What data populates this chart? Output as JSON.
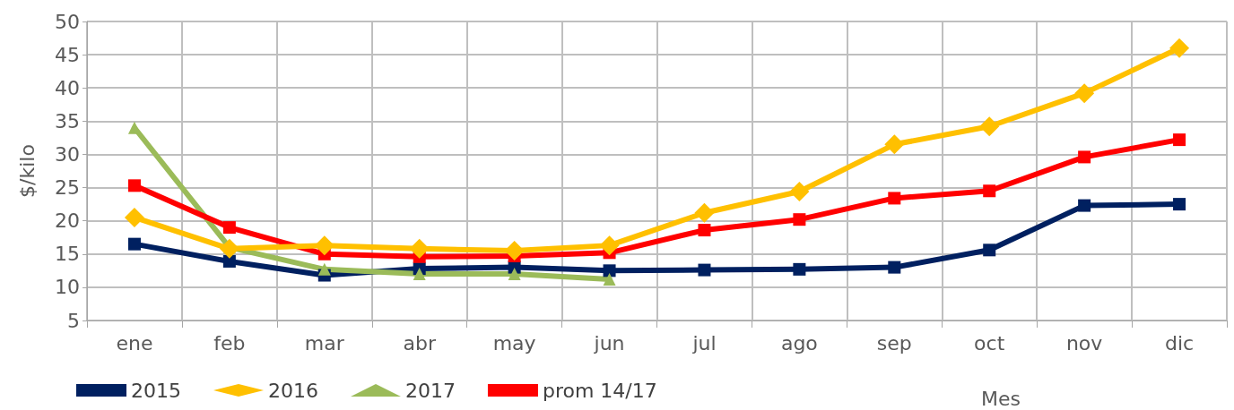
{
  "chart_data": {
    "type": "line",
    "ylabel": "$/kilo",
    "xlabel": "Mes",
    "categories": [
      "ene",
      "feb",
      "mar",
      "abr",
      "may",
      "jun",
      "jul",
      "ago",
      "sep",
      "oct",
      "nov",
      "dic"
    ],
    "series": [
      {
        "name": "2015",
        "color": "#002060",
        "marker": "square",
        "values": [
          16.5,
          13.9,
          11.8,
          12.8,
          13,
          12.5,
          12.6,
          12.7,
          13,
          15.6,
          22.3,
          22.5
        ]
      },
      {
        "name": "2016",
        "color": "#ffc000",
        "marker": "diamond",
        "values": [
          20.5,
          15.8,
          16.3,
          15.8,
          15.5,
          16.3,
          21.2,
          24.4,
          31.5,
          34.2,
          39.2,
          46
        ]
      },
      {
        "name": "2017",
        "color": "#9bbb59",
        "marker": "triangle",
        "values": [
          34,
          16,
          12.7,
          12,
          12,
          11.2,
          null,
          null,
          null,
          null,
          null,
          null
        ]
      },
      {
        "name": "prom 14/17",
        "color": "#ff0000",
        "marker": "square",
        "values": [
          25.3,
          19,
          15,
          14.6,
          14.7,
          15.2,
          18.6,
          20.2,
          23.4,
          24.5,
          29.6,
          32.2
        ]
      }
    ],
    "ylim": [
      5,
      50
    ],
    "yticks": [
      5,
      10,
      15,
      20,
      25,
      30,
      35,
      40,
      45,
      50
    ],
    "grid": true,
    "legend": "bottom left",
    "line_style": "solid"
  }
}
